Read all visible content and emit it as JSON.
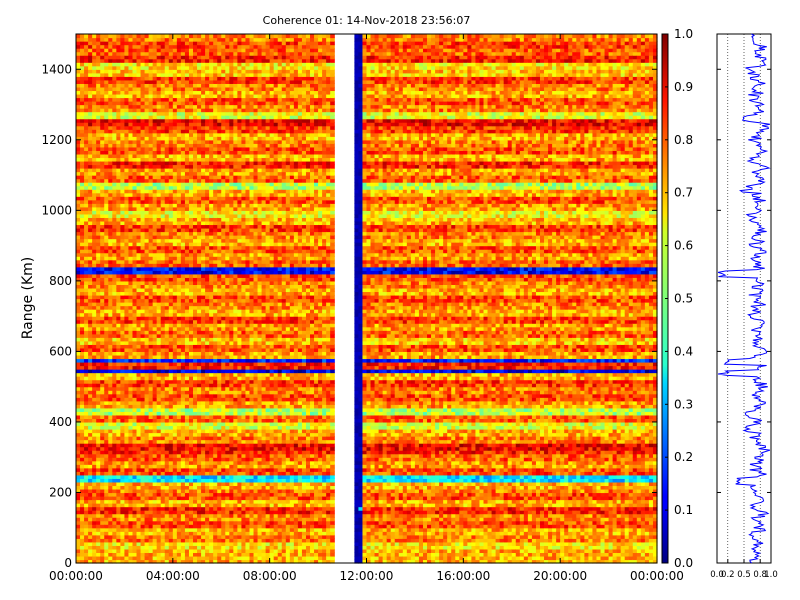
{
  "chart_data": {
    "type": "heatmap",
    "title": "Coherence 01: 14-Nov-2018 23:56:07",
    "ylabel": "Range (Km)",
    "ylim": [
      0,
      1500
    ],
    "yticks": [
      0,
      200,
      400,
      600,
      800,
      1000,
      1200,
      1400
    ],
    "xticks": [
      "00:00:00",
      "04:00:00",
      "08:00:00",
      "12:00:00",
      "16:00:00",
      "20:00:00",
      "00:00:00"
    ],
    "xrange_hours": [
      0,
      24
    ],
    "colorscale": "jet",
    "colorbar_range": [
      0,
      1
    ],
    "colorbar_ticks": [
      0.0,
      0.1,
      0.2,
      0.3,
      0.4,
      0.5,
      0.6,
      0.7,
      0.8,
      0.9,
      1.0
    ],
    "colorbar_tick_labels": [
      "0.0",
      "0.1",
      "0.2",
      "0.3",
      "0.4",
      "0.5",
      "0.6",
      "0.7",
      "0.8",
      "0.9",
      "1.0"
    ],
    "data_gap_hours": [
      10.75,
      11.55
    ],
    "low_coherence_column_hours": [
      11.55,
      11.85
    ],
    "range_profile_rows": [
      {
        "range": 20,
        "coherence": 0.7
      },
      {
        "range": 40,
        "coherence": 0.65
      },
      {
        "range": 60,
        "coherence": 0.75
      },
      {
        "range": 80,
        "coherence": 0.7
      },
      {
        "range": 100,
        "coherence": 0.8
      },
      {
        "range": 120,
        "coherence": 0.75
      },
      {
        "range": 140,
        "coherence": 0.85
      },
      {
        "range": 160,
        "coherence": 0.7
      },
      {
        "range": 180,
        "coherence": 0.8
      },
      {
        "range": 200,
        "coherence": 0.75
      },
      {
        "range": 215,
        "coherence": 0.7
      },
      {
        "range": 230,
        "coherence": 0.35
      },
      {
        "range": 250,
        "coherence": 0.8
      },
      {
        "range": 270,
        "coherence": 0.72
      },
      {
        "range": 290,
        "coherence": 0.78
      },
      {
        "range": 310,
        "coherence": 0.85
      },
      {
        "range": 325,
        "coherence": 0.88
      },
      {
        "range": 340,
        "coherence": 0.75
      },
      {
        "range": 360,
        "coherence": 0.7
      },
      {
        "range": 380,
        "coherence": 0.6
      },
      {
        "range": 400,
        "coherence": 0.78
      },
      {
        "range": 420,
        "coherence": 0.55
      },
      {
        "range": 440,
        "coherence": 0.72
      },
      {
        "range": 460,
        "coherence": 0.8
      },
      {
        "range": 480,
        "coherence": 0.75
      },
      {
        "range": 500,
        "coherence": 0.82
      },
      {
        "range": 520,
        "coherence": 0.7
      },
      {
        "range": 540,
        "coherence": 0.1
      },
      {
        "range": 555,
        "coherence": 0.85
      },
      {
        "range": 570,
        "coherence": 0.15
      },
      {
        "range": 585,
        "coherence": 0.72
      },
      {
        "range": 600,
        "coherence": 0.8
      },
      {
        "range": 620,
        "coherence": 0.68
      },
      {
        "range": 640,
        "coherence": 0.78
      },
      {
        "range": 660,
        "coherence": 0.72
      },
      {
        "range": 680,
        "coherence": 0.82
      },
      {
        "range": 700,
        "coherence": 0.7
      },
      {
        "range": 720,
        "coherence": 0.75
      },
      {
        "range": 740,
        "coherence": 0.8
      },
      {
        "range": 760,
        "coherence": 0.7
      },
      {
        "range": 780,
        "coherence": 0.75
      },
      {
        "range": 800,
        "coherence": 0.8
      },
      {
        "range": 820,
        "coherence": 0.12
      },
      {
        "range": 840,
        "coherence": 0.78
      },
      {
        "range": 860,
        "coherence": 0.72
      },
      {
        "range": 880,
        "coherence": 0.8
      },
      {
        "range": 900,
        "coherence": 0.7
      },
      {
        "range": 920,
        "coherence": 0.75
      },
      {
        "range": 940,
        "coherence": 0.82
      },
      {
        "range": 960,
        "coherence": 0.7
      },
      {
        "range": 980,
        "coherence": 0.62
      },
      {
        "range": 1000,
        "coherence": 0.72
      },
      {
        "range": 1020,
        "coherence": 0.8
      },
      {
        "range": 1040,
        "coherence": 0.7
      },
      {
        "range": 1060,
        "coherence": 0.55
      },
      {
        "range": 1080,
        "coherence": 0.78
      },
      {
        "range": 1100,
        "coherence": 0.72
      },
      {
        "range": 1120,
        "coherence": 0.85
      },
      {
        "range": 1140,
        "coherence": 0.7
      },
      {
        "range": 1160,
        "coherence": 0.8
      },
      {
        "range": 1180,
        "coherence": 0.75
      },
      {
        "range": 1200,
        "coherence": 0.7
      },
      {
        "range": 1220,
        "coherence": 0.82
      },
      {
        "range": 1240,
        "coherence": 0.88
      },
      {
        "range": 1260,
        "coherence": 0.6
      },
      {
        "range": 1280,
        "coherence": 0.75
      },
      {
        "range": 1300,
        "coherence": 0.8
      },
      {
        "range": 1320,
        "coherence": 0.7
      },
      {
        "range": 1340,
        "coherence": 0.75
      },
      {
        "range": 1360,
        "coherence": 0.82
      },
      {
        "range": 1380,
        "coherence": 0.68
      },
      {
        "range": 1400,
        "coherence": 0.65
      },
      {
        "range": 1420,
        "coherence": 0.85
      },
      {
        "range": 1440,
        "coherence": 0.78
      },
      {
        "range": 1460,
        "coherence": 0.82
      },
      {
        "range": 1480,
        "coherence": 0.75
      }
    ],
    "side_panel": {
      "xlim": [
        0,
        1
      ],
      "xtick_labels": [
        "0.0",
        "0.2",
        "0.5",
        "0.8",
        "1.0"
      ],
      "line_color": "#0000ff",
      "dotted_reference_lines": [
        0.2,
        0.5,
        0.8
      ]
    }
  }
}
